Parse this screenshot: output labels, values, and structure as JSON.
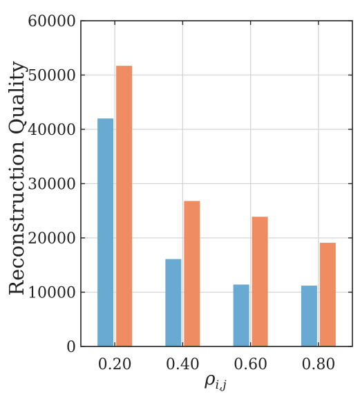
{
  "chart_data": {
    "type": "bar",
    "categories": [
      "0.20",
      "0.40",
      "0.60",
      "0.80"
    ],
    "series": [
      {
        "values": [
          42000,
          16100,
          11400,
          11200
        ],
        "color": "#68aad1"
      },
      {
        "values": [
          51700,
          26800,
          23900,
          19100
        ],
        "color": "#f08c62"
      }
    ],
    "ylabel": "Reconstruction Quality",
    "xlabel": "ρ_{i,j}",
    "ylim": [
      0,
      60000
    ],
    "yticks": [
      0,
      10000,
      20000,
      30000,
      40000,
      50000,
      60000
    ],
    "grid": true
  }
}
